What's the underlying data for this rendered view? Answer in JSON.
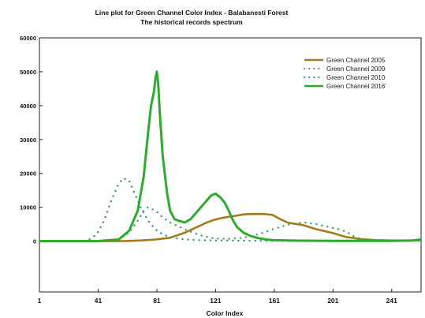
{
  "chart_data": {
    "type": "line",
    "title": "Line plot for Green Channel Color Index  - Balabanesti Forest",
    "subtitle": "The historical records spectrum",
    "xlabel": "Color Index",
    "ylabel": "",
    "xlim": [
      1,
      261
    ],
    "ylim": [
      -15000,
      60000
    ],
    "x_ticks": [
      1,
      41,
      81,
      121,
      161,
      201,
      241
    ],
    "y_ticks": [
      0,
      10000,
      20000,
      30000,
      40000,
      50000,
      60000
    ],
    "grid": false,
    "legend_position": "top-right",
    "series": [
      {
        "name": "Green Channel 2005",
        "color": "#a07c1a",
        "style": "solid",
        "x": [
          1,
          40,
          60,
          70,
          80,
          90,
          100,
          110,
          115,
          120,
          125,
          130,
          135,
          140,
          145,
          150,
          155,
          160,
          165,
          170,
          175,
          180,
          190,
          200,
          210,
          220,
          230,
          240,
          250,
          261
        ],
        "y": [
          0,
          0,
          50,
          200,
          500,
          1000,
          2500,
          4500,
          5500,
          6300,
          6800,
          7200,
          7500,
          7900,
          8000,
          8000,
          8000,
          7700,
          6500,
          5500,
          5100,
          4800,
          3500,
          2500,
          1200,
          600,
          300,
          200,
          100,
          300
        ]
      },
      {
        "name": "Green Channel 2009",
        "color": "#4a9a70",
        "style": "dotted",
        "x": [
          1,
          45,
          55,
          62,
          68,
          72,
          75,
          80,
          85,
          90,
          95,
          100,
          110,
          120,
          130,
          140,
          150,
          160,
          165,
          170,
          175,
          180,
          185,
          190,
          195,
          200,
          205,
          210,
          215,
          220,
          230,
          240,
          250,
          261
        ],
        "y": [
          0,
          0,
          500,
          2500,
          6000,
          9000,
          10000,
          9000,
          7000,
          5500,
          4500,
          3500,
          1800,
          800,
          700,
          1000,
          2000,
          3500,
          4200,
          4800,
          5200,
          5500,
          5300,
          5000,
          4500,
          4000,
          3500,
          2800,
          1500,
          600,
          200,
          100,
          100,
          200
        ]
      },
      {
        "name": "Green Channel 2010",
        "color": "#3f8f8a",
        "style": "dotted",
        "x": [
          1,
          30,
          35,
          40,
          45,
          50,
          55,
          58,
          62,
          65,
          70,
          75,
          80,
          85,
          90,
          95,
          100,
          110,
          120,
          130,
          140,
          150,
          160,
          180,
          200,
          220,
          240,
          261
        ],
        "y": [
          0,
          0,
          500,
          2000,
          6000,
          12000,
          17000,
          18500,
          18000,
          15000,
          10000,
          6000,
          3500,
          2000,
          1200,
          800,
          500,
          300,
          200,
          200,
          150,
          100,
          100,
          100,
          100,
          100,
          100,
          100
        ]
      },
      {
        "name": "Green Channel 2016'",
        "color": "#2eaa2e",
        "style": "solid",
        "x": [
          1,
          40,
          55,
          62,
          68,
          72,
          75,
          77,
          79,
          80,
          81,
          82,
          83,
          85,
          88,
          90,
          93,
          96,
          100,
          104,
          108,
          112,
          115,
          118,
          121,
          124,
          127,
          130,
          133,
          136,
          140,
          145,
          150,
          155,
          160,
          170,
          180,
          200,
          220,
          240,
          255,
          261
        ],
        "y": [
          0,
          0,
          500,
          3000,
          9000,
          19000,
          32000,
          40000,
          44000,
          48000,
          50000,
          46000,
          38000,
          25000,
          14000,
          9000,
          6500,
          6000,
          5500,
          6500,
          8500,
          10500,
          12000,
          13500,
          14000,
          13000,
          11500,
          9000,
          6000,
          4000,
          2500,
          1500,
          900,
          500,
          300,
          200,
          150,
          100,
          100,
          100,
          200,
          500
        ]
      }
    ]
  }
}
